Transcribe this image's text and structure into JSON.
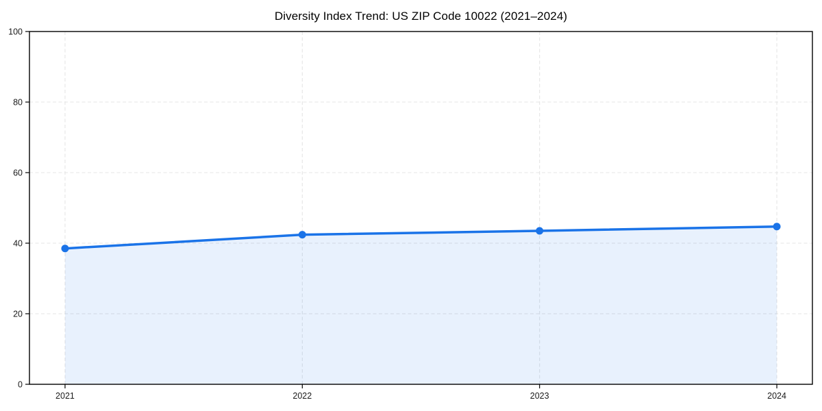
{
  "chart_data": {
    "type": "area",
    "title": "Diversity Index Trend: US ZIP Code 10022 (2021–2024)",
    "x": [
      2021,
      2022,
      2023,
      2024
    ],
    "xticks": [
      2021,
      2022,
      2023,
      2024
    ],
    "series": [
      {
        "name": "Diversity Index",
        "values": [
          38.5,
          42.4,
          43.5,
          44.7
        ]
      }
    ],
    "xlabel": "",
    "ylabel": "",
    "ylim": [
      0,
      100
    ],
    "yticks": [
      0,
      20,
      40,
      60,
      80,
      100
    ],
    "x_range": [
      2020.85,
      2024.15
    ],
    "grid": true,
    "grid_style": "dashed",
    "legend": "none",
    "colors": {
      "line": "#1a73e8",
      "marker": "#1a73e8",
      "fill": "rgba(26,115,232,0.10)",
      "grid": "#e4e4e4",
      "spine": "#000000",
      "tick": "#000000",
      "tick_label": "#1a1a1a",
      "title": "#000000",
      "background": "#ffffff"
    }
  }
}
